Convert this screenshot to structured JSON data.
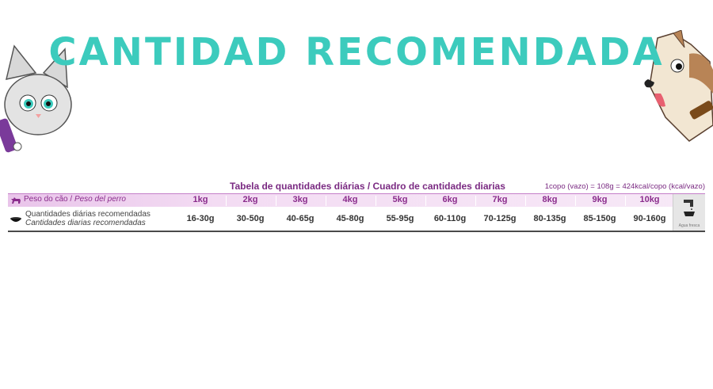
{
  "header": {
    "title": "CANTIDAD RECOMENDADA"
  },
  "table": {
    "title": "Tabela de quantidades diárias / Cuadro de cantidades diarias",
    "kcal_note": "1copo (vazo) = 108g = 424kcal/copo (kcal/vazo)",
    "weight_label_pt": "Peso do cão / ",
    "weight_label_es": "Peso del perro",
    "qty_label_pt": "Quantidades diárias recomendadas",
    "qty_label_es": "Cantidades diarias recomendadas",
    "weights": [
      "1kg",
      "2kg",
      "3kg",
      "4kg",
      "5kg",
      "6kg",
      "7kg",
      "8kg",
      "9kg",
      "10kg"
    ],
    "amounts": [
      "16-30g",
      "30-50g",
      "40-65g",
      "45-80g",
      "55-95g",
      "60-110g",
      "70-125g",
      "80-135g",
      "85-150g",
      "90-160g"
    ],
    "water_caption": "Agua fresca"
  },
  "colors": {
    "title": "#3ccbbd",
    "table_accent": "#8a2c8c",
    "header_band": "#f3dcf3"
  },
  "icons": [
    "cat-mascot-icon",
    "dog-mascot-icon",
    "dog-silhouette-icon",
    "food-bowl-icon",
    "water-faucet-icon"
  ]
}
